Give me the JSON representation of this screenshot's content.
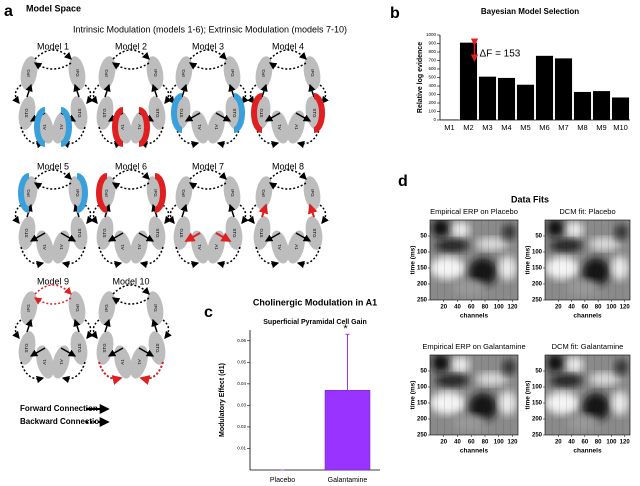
{
  "panel_labels": [
    "a",
    "b",
    "c",
    "d"
  ],
  "model_space": {
    "title": "Model Space",
    "subtitle": "Intrinsic Modulation (models 1-6); Extrinsic Modulation (models 7-10)",
    "models": [
      "Model 1",
      "Model 2",
      "Model 3",
      "Model 4",
      "Model 5",
      "Model 6",
      "Model 7",
      "Model 8",
      "Model 9",
      "Model 10"
    ],
    "node_labels": [
      "IFG",
      "STG",
      "A1"
    ],
    "legend": [
      "Forward Connection",
      "Backward Connection"
    ]
  },
  "data_fits_title": "Data Fits",
  "chart_data": [
    {
      "type": "bar",
      "title": "Bayesian Model Selection",
      "ylabel": "Relative log evidence",
      "categories": [
        "M1",
        "M2",
        "M3",
        "M4",
        "M5",
        "M6",
        "M7",
        "M8",
        "M9",
        "M10"
      ],
      "values": [
        5,
        910,
        510,
        495,
        415,
        755,
        725,
        330,
        340,
        265
      ],
      "color": "#000000",
      "ylim": [
        0,
        1000
      ],
      "yticks": [
        0,
        100,
        200,
        300,
        400,
        500,
        600,
        700,
        800,
        900,
        1000
      ],
      "annotation": "ΔF = 153"
    },
    {
      "type": "bar",
      "title": "Cholinergic Modulation in A1",
      "subtitle": "Superficial Pyramidal Cell Gain",
      "ylabel": "Modulatory Effect (d1)",
      "categories": [
        "Placebo",
        "Galantamine"
      ],
      "values": [
        0,
        0.037
      ],
      "errors": [
        0,
        0.026
      ],
      "color": "#9933ff",
      "ylim": [
        0,
        0.065
      ],
      "yticks": [
        0.01,
        0.02,
        0.03,
        0.04,
        0.05,
        0.06
      ],
      "annotation": "*"
    },
    {
      "type": "heatmap",
      "title": "Empirical ERP on Placebo",
      "xlabel": "channels",
      "ylabel": "time (ms)",
      "xlim": [
        0,
        128
      ],
      "ylim": [
        0,
        250
      ],
      "xticks": [
        20,
        40,
        60,
        80,
        100,
        120
      ],
      "yticks": [
        50,
        100,
        150,
        200,
        250
      ]
    },
    {
      "type": "heatmap",
      "title": "DCM fit: Placebo",
      "xlabel": "channels",
      "ylabel": "time (ms)",
      "xlim": [
        0,
        128
      ],
      "ylim": [
        0,
        250
      ],
      "xticks": [
        20,
        40,
        60,
        80,
        100,
        120
      ],
      "yticks": [
        50,
        100,
        150,
        200,
        250
      ]
    },
    {
      "type": "heatmap",
      "title": "Empirical ERP on Galantamine",
      "xlabel": "channels",
      "ylabel": "time (ms)",
      "xlim": [
        0,
        128
      ],
      "ylim": [
        0,
        250
      ],
      "xticks": [
        20,
        40,
        60,
        80,
        100,
        120
      ],
      "yticks": [
        50,
        100,
        150,
        200,
        250
      ]
    },
    {
      "type": "heatmap",
      "title": "DCM fit: Galantamine",
      "xlabel": "channels",
      "ylabel": "time (ms)",
      "xlim": [
        0,
        128
      ],
      "ylim": [
        0,
        250
      ],
      "xticks": [
        20,
        40,
        60,
        80,
        100,
        120
      ],
      "yticks": [
        50,
        100,
        150,
        200,
        250
      ]
    }
  ]
}
